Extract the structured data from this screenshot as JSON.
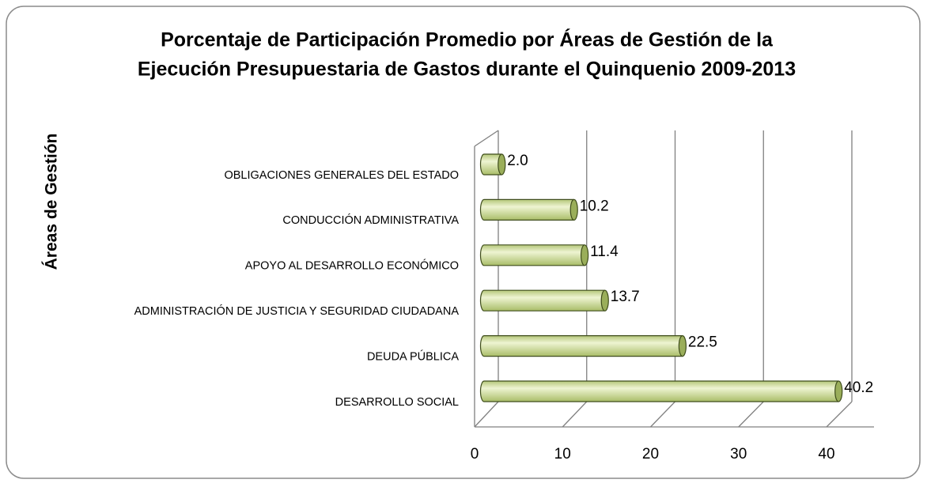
{
  "chart_data": {
    "type": "bar3d-horizontal",
    "title": "Porcentaje de Participación Promedio por Áreas de Gestión de la Ejecución Presupuestaria de Gastos durante el Quinquenio 2009-2013",
    "title_lines": [
      "Porcentaje de Participación Promedio por Áreas de Gestión de la",
      "Ejecución Presupuestaria de Gastos durante el Quinquenio 2009-2013"
    ],
    "y_label": "Áreas de Gestión",
    "categories": [
      "OBLIGACIONES GENERALES DEL ESTADO",
      "CONDUCCIÓN ADMINISTRATIVA",
      "APOYO AL DESARROLLO ECONÓMICO",
      "ADMINISTRACIÓN DE JUSTICIA Y SEGURIDAD CIUDADANA",
      "DEUDA PÚBLICA",
      "DESARROLLO SOCIAL"
    ],
    "values": [
      2.0,
      10.2,
      11.4,
      13.7,
      22.5,
      40.2
    ],
    "value_labels": [
      "2.0",
      "10.2",
      "11.4",
      "13.7",
      "22.5",
      "40.2"
    ],
    "color": "#d6e3a2",
    "xlim": [
      0,
      40
    ],
    "xticks": [
      0,
      10,
      20,
      30,
      40
    ],
    "grid": true
  }
}
